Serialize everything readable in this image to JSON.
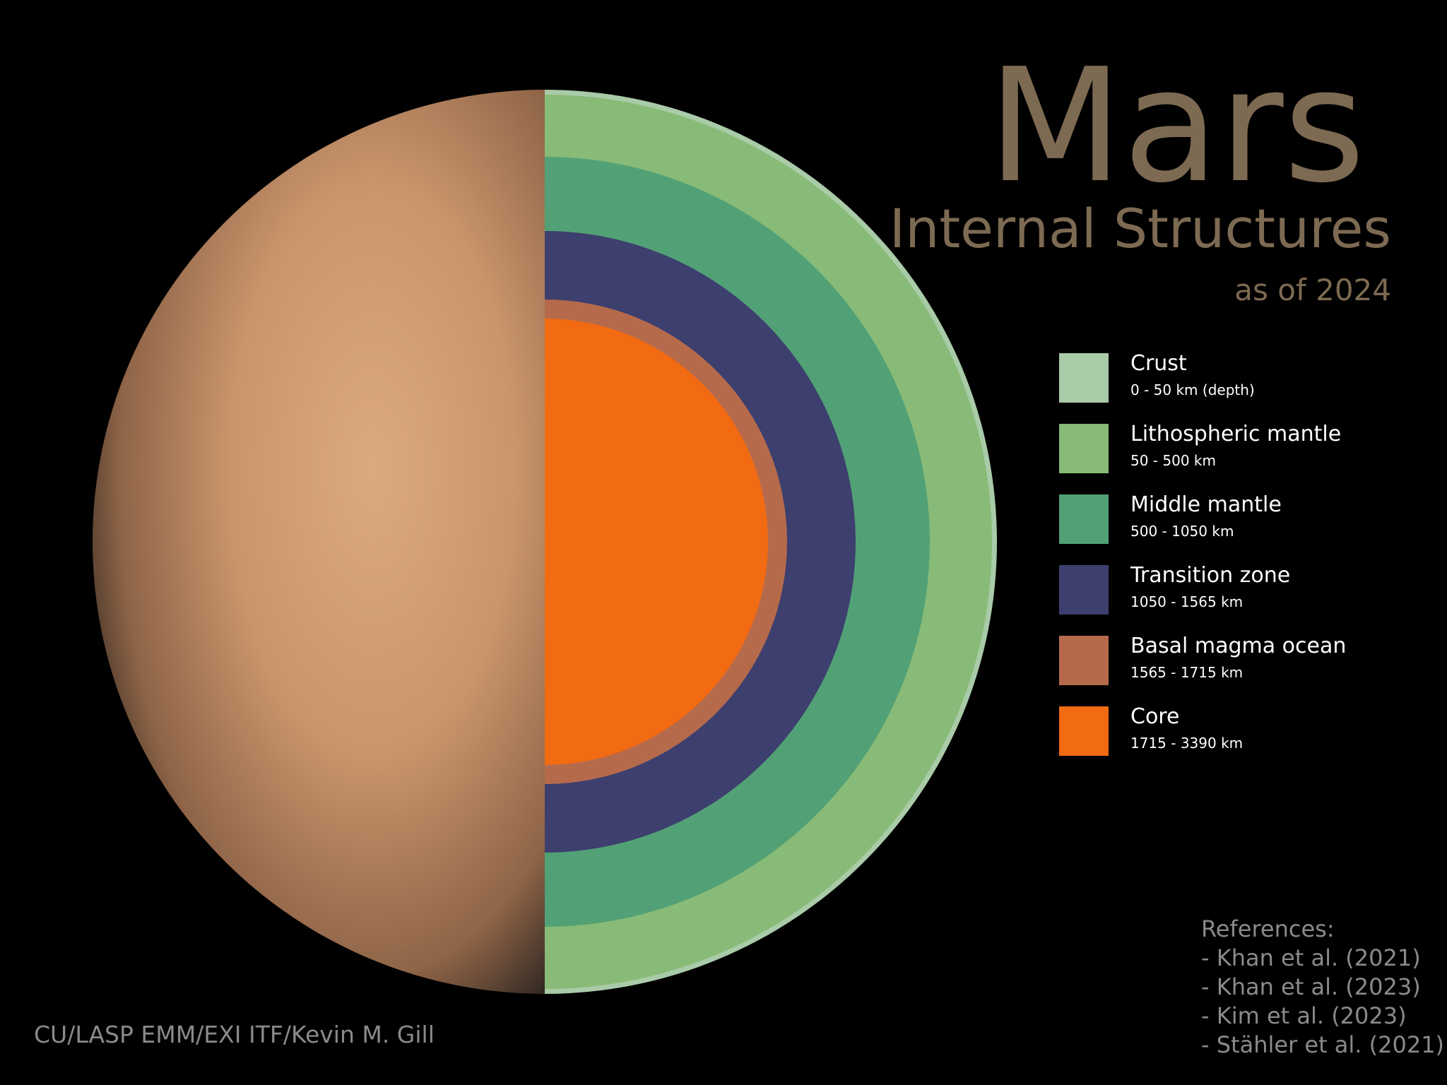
{
  "header": {
    "title": "Mars",
    "subtitle": "Internal Structures",
    "date": "as of 2024"
  },
  "layers": [
    {
      "name": "Crust",
      "range": "0 - 50 km (depth)",
      "color": "#a9cba8"
    },
    {
      "name": "Lithospheric mantle",
      "range": "50 - 500 km",
      "color": "#88bb77"
    },
    {
      "name": "Middle mantle",
      "range": "500 - 1050 km",
      "color": "#52a176"
    },
    {
      "name": "Transition zone",
      "range": "1050 - 1565 km",
      "color": "#3d3f6e"
    },
    {
      "name": "Basal magma ocean",
      "range": "1565 - 1715 km",
      "color": "#b66a4c"
    },
    {
      "name": "Core",
      "range": "1715 - 3390 km",
      "color": "#f26a12"
    }
  ],
  "references": {
    "title": "References:",
    "items": [
      "- Khan et al. (2021)",
      "- Khan et al. (2023)",
      "- Kim et al. (2023)",
      "- Stähler et al. (2021)"
    ]
  },
  "credit": "CU/LASP EMM/EXI ITF/Kevin M. Gill"
}
